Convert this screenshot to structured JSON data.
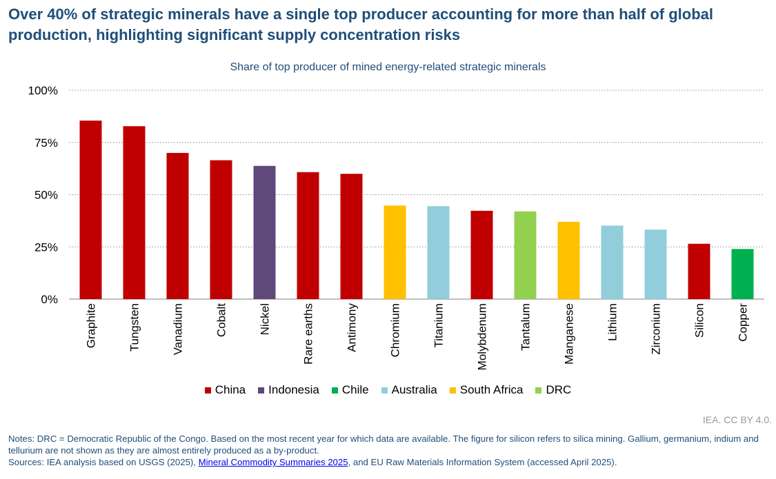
{
  "headline": "Over 40% of strategic minerals have a single top producer accounting for more than half of global production, highlighting significant supply concentration risks",
  "chart_data": {
    "type": "bar",
    "title": "Share of top producer of mined energy-related strategic minerals",
    "categories": [
      "Graphite",
      "Tungsten",
      "Vanadium",
      "Cobalt",
      "Nickel",
      "Rare earths",
      "Antimony",
      "Chromium",
      "Titanium",
      "Molybdenum",
      "Tantalum",
      "Manganese",
      "Lithium",
      "Zirconium",
      "Silicon",
      "Copper"
    ],
    "values": [
      85.5,
      82.8,
      70.0,
      66.5,
      63.8,
      60.8,
      60.0,
      44.8,
      44.5,
      42.3,
      42.0,
      37.0,
      35.2,
      33.3,
      26.5,
      24.0
    ],
    "top_producer": [
      "China",
      "China",
      "China",
      "China",
      "Indonesia",
      "China",
      "China",
      "South Africa",
      "Australia",
      "China",
      "DRC",
      "South Africa",
      "Australia",
      "Australia",
      "China",
      "Chile"
    ],
    "ylim": [
      0,
      100
    ],
    "yticks": [
      0,
      25,
      50,
      75,
      100
    ],
    "ytick_labels": [
      "0%",
      "25%",
      "50%",
      "75%",
      "100%"
    ],
    "grid": true,
    "legend_position": "bottom",
    "legend": [
      {
        "name": "China",
        "color": "#C00000"
      },
      {
        "name": "Indonesia",
        "color": "#5F497A"
      },
      {
        "name": "Chile",
        "color": "#00B050"
      },
      {
        "name": "Australia",
        "color": "#92CDDC"
      },
      {
        "name": "South Africa",
        "color": "#FFC000"
      },
      {
        "name": "DRC",
        "color": "#92D050"
      }
    ]
  },
  "credit": "IEA. CC BY 4.0.",
  "notes": {
    "line1": "Notes: DRC = Democratic Republic of the Congo. Based on the most recent year for which data are available. The figure for silicon refers to silica mining. Gallium, germanium, indium and tellurium are not shown as they are almost entirely produced as a by-product.",
    "sources_prefix": "Sources: IEA analysis based on USGS (2025), ",
    "sources_link": "Mineral Commodity Summaries 2025",
    "sources_suffix": ", and EU Raw Materials Information System (accessed April 2025)."
  }
}
